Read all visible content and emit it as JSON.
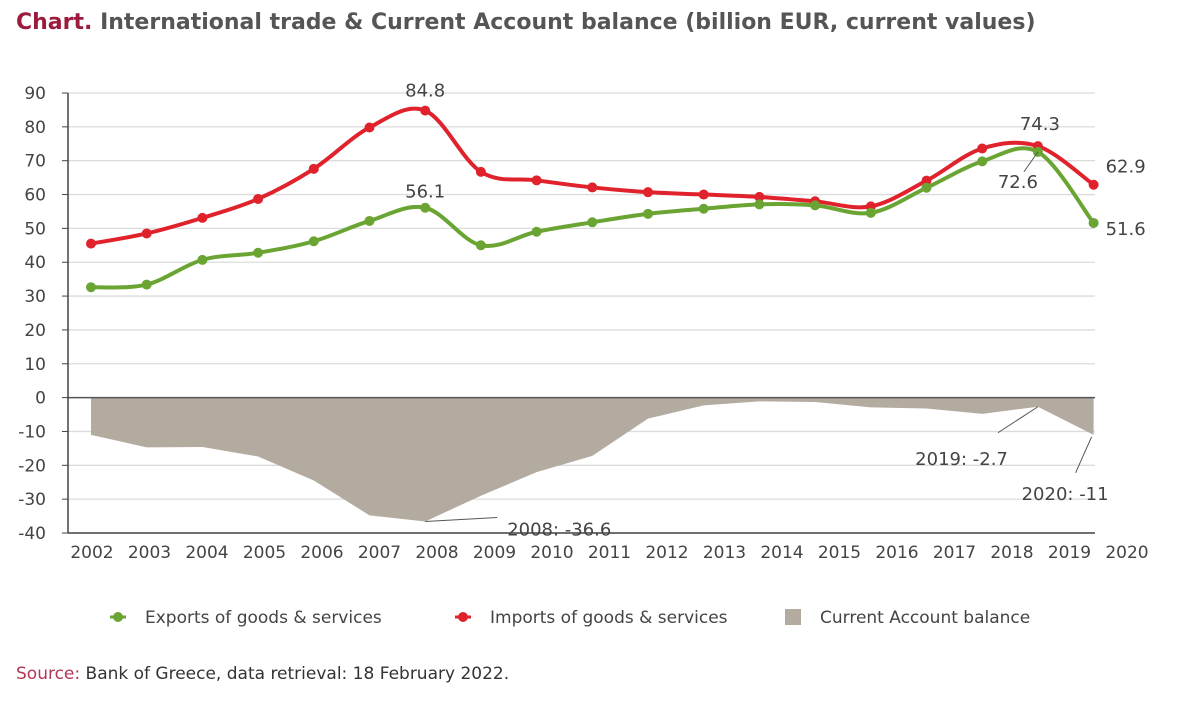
{
  "title": {
    "lead": "Chart.",
    "text": "International trade & Current Account balance (billion EUR, current values)"
  },
  "source": {
    "lead": "Source:",
    "text": "Bank of Greece, data retrieval: 18 February 2022."
  },
  "colors": {
    "exports": "#6aa534",
    "imports": "#e0222c",
    "balance": "#b3aba0",
    "title_accent": "#9b1b3c"
  },
  "chart_data": {
    "type": "line",
    "title": "International trade & Current Account balance (billion EUR, current values)",
    "xlabel": "",
    "ylabel": "",
    "ylim": [
      -40,
      90
    ],
    "yticks": [
      90,
      80,
      70,
      60,
      50,
      40,
      30,
      20,
      10,
      0,
      -10,
      -20,
      -30,
      -40
    ],
    "grid": true,
    "legend": "bottom",
    "categories": [
      "2002",
      "2003",
      "2004",
      "2005",
      "2006",
      "2007",
      "2008",
      "2009",
      "2010",
      "2011",
      "2012",
      "2013",
      "2014",
      "2015",
      "2016",
      "2017",
      "2018",
      "2019",
      "2020"
    ],
    "series": [
      {
        "name": "Exports of goods & services",
        "type": "line",
        "values": [
          32.6,
          33.4,
          40.7,
          42.8,
          46.2,
          52.2,
          56.1,
          45.0,
          49.0,
          51.8,
          54.3,
          55.8,
          57.1,
          56.8,
          54.6,
          62.0,
          69.8,
          72.6,
          51.6
        ]
      },
      {
        "name": "Imports of goods & services",
        "type": "line",
        "values": [
          45.5,
          48.5,
          53.1,
          58.7,
          67.6,
          79.8,
          84.8,
          66.7,
          64.2,
          62.1,
          60.7,
          60.0,
          59.3,
          58.0,
          56.5,
          64.1,
          73.6,
          74.3,
          62.9
        ]
      },
      {
        "name": "Current Account balance",
        "type": "area",
        "values": [
          -11.0,
          -14.7,
          -14.6,
          -17.4,
          -24.5,
          -34.8,
          -36.6,
          -29.0,
          -22.0,
          -17.2,
          -6.2,
          -2.3,
          -1.1,
          -1.3,
          -2.9,
          -3.2,
          -4.8,
          -2.7,
          -11.0
        ]
      }
    ],
    "annotations": [
      {
        "text": "84.8",
        "series": 1,
        "index": 6
      },
      {
        "text": "56.1",
        "series": 0,
        "index": 6
      },
      {
        "text": "74.3",
        "series": 1,
        "index": 17
      },
      {
        "text": "72.6",
        "series": 0,
        "index": 17
      },
      {
        "text": "62.9",
        "series": 1,
        "index": 18
      },
      {
        "text": "51.6",
        "series": 0,
        "index": 18
      },
      {
        "text": "2008: -36.6",
        "series": 2,
        "index": 6
      },
      {
        "text": "2019: -2.7",
        "series": 2,
        "index": 17
      },
      {
        "text": "2020: -11",
        "series": 2,
        "index": 18
      }
    ]
  }
}
